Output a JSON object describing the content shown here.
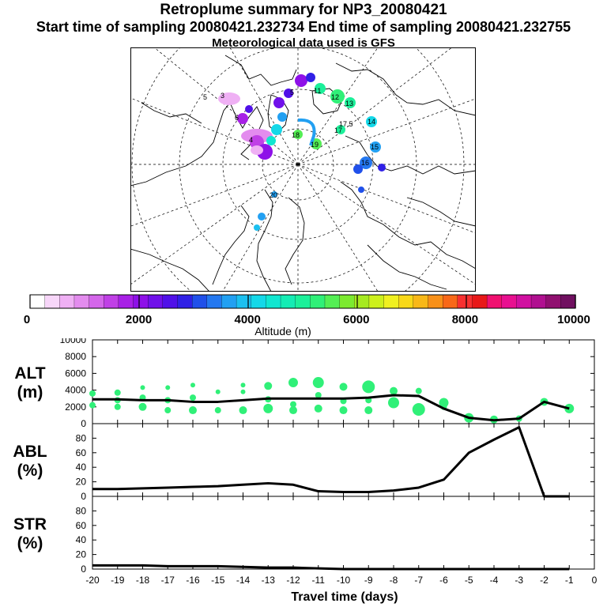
{
  "header": {
    "title": "Retroplume summary for NP3_20080421",
    "sampling": "Start time of sampling 20080421.232734     End time of sampling 20080421.232755",
    "met": "Meteorological data used is GFS"
  },
  "colorbar": {
    "label": "Altitude (m)",
    "ticks": [
      "0",
      "2000",
      "4000",
      "6000",
      "8000",
      "10000"
    ],
    "colors": [
      "#ffffff",
      "#f7d6f9",
      "#efb0f4",
      "#e38cee",
      "#d466ea",
      "#c040e6",
      "#a820e6",
      "#8e10e8",
      "#7010ea",
      "#5010e8",
      "#3020e6",
      "#2050ea",
      "#2478f0",
      "#22a0f2",
      "#1cc0f0",
      "#14d8e8",
      "#10e6d0",
      "#14ecb4",
      "#1cf09a",
      "#30f078",
      "#54ee54",
      "#7cea30",
      "#a6ea20",
      "#cdf01c",
      "#f0f020",
      "#f8d818",
      "#f8b818",
      "#f89018",
      "#f86818",
      "#f83030",
      "#e81818",
      "#f01070",
      "#e81090",
      "#d010a0",
      "#b01090",
      "#901070",
      "#701060"
    ]
  },
  "map": {
    "labels": [
      "5",
      "3",
      "6",
      "4",
      "5",
      "11",
      "12",
      "13",
      "14",
      "15",
      "16",
      "17",
      "18",
      "19",
      "20",
      "17.5"
    ]
  },
  "chart_data": [
    {
      "type": "line",
      "panel": "ALT",
      "ylabel": "ALT\n(m)",
      "ylabel_lines": [
        "ALT",
        "(m)"
      ],
      "ylim": [
        0,
        10000
      ],
      "yticks": [
        "0",
        "2000",
        "4000",
        "6000",
        "8000",
        "10000"
      ],
      "x": [
        -20,
        -19,
        -18,
        -17,
        -16,
        -15,
        -14,
        -13,
        -12,
        -11,
        -10,
        -9,
        -8,
        -7,
        -6,
        -5,
        -4,
        -3,
        -2,
        -1
      ],
      "series": [
        {
          "name": "median altitude",
          "values": [
            2900,
            2900,
            2800,
            2800,
            2600,
            2600,
            2800,
            3000,
            3000,
            3000,
            3000,
            3100,
            3400,
            3300,
            1800,
            700,
            400,
            600,
            2600,
            1800
          ]
        }
      ],
      "clusters": [
        {
          "x": -20,
          "y": 3600,
          "r": 4
        },
        {
          "x": -20,
          "y": 2200,
          "r": 4
        },
        {
          "x": -19,
          "y": 3700,
          "r": 4
        },
        {
          "x": -19,
          "y": 2800,
          "r": 4
        },
        {
          "x": -19,
          "y": 2000,
          "r": 4
        },
        {
          "x": -18,
          "y": 4300,
          "r": 3
        },
        {
          "x": -18,
          "y": 3100,
          "r": 4
        },
        {
          "x": -18,
          "y": 2000,
          "r": 5
        },
        {
          "x": -17,
          "y": 4300,
          "r": 3
        },
        {
          "x": -17,
          "y": 2800,
          "r": 4
        },
        {
          "x": -17,
          "y": 1600,
          "r": 4
        },
        {
          "x": -16,
          "y": 4600,
          "r": 3
        },
        {
          "x": -16,
          "y": 3100,
          "r": 4
        },
        {
          "x": -16,
          "y": 1600,
          "r": 5
        },
        {
          "x": -15,
          "y": 3800,
          "r": 3
        },
        {
          "x": -15,
          "y": 1600,
          "r": 4
        },
        {
          "x": -14,
          "y": 4600,
          "r": 3
        },
        {
          "x": -14,
          "y": 3800,
          "r": 3
        },
        {
          "x": -14,
          "y": 1600,
          "r": 5
        },
        {
          "x": -13,
          "y": 4500,
          "r": 5
        },
        {
          "x": -13,
          "y": 2900,
          "r": 4
        },
        {
          "x": -13,
          "y": 1800,
          "r": 6
        },
        {
          "x": -12,
          "y": 4900,
          "r": 6
        },
        {
          "x": -12,
          "y": 2300,
          "r": 4
        },
        {
          "x": -12,
          "y": 1600,
          "r": 5
        },
        {
          "x": -11,
          "y": 4900,
          "r": 7
        },
        {
          "x": -11,
          "y": 3400,
          "r": 4
        },
        {
          "x": -11,
          "y": 1800,
          "r": 5
        },
        {
          "x": -10,
          "y": 4400,
          "r": 5
        },
        {
          "x": -10,
          "y": 2700,
          "r": 4
        },
        {
          "x": -10,
          "y": 1600,
          "r": 5
        },
        {
          "x": -9,
          "y": 4400,
          "r": 8
        },
        {
          "x": -9,
          "y": 2800,
          "r": 4
        },
        {
          "x": -9,
          "y": 1600,
          "r": 5
        },
        {
          "x": -8,
          "y": 3900,
          "r": 5
        },
        {
          "x": -8,
          "y": 2500,
          "r": 7
        },
        {
          "x": -7,
          "y": 3900,
          "r": 4
        },
        {
          "x": -7,
          "y": 1700,
          "r": 8
        },
        {
          "x": -6,
          "y": 2500,
          "r": 6
        },
        {
          "x": -6,
          "y": 2000,
          "r": 4
        },
        {
          "x": -5,
          "y": 700,
          "r": 6
        },
        {
          "x": -4,
          "y": 500,
          "r": 5
        },
        {
          "x": -3,
          "y": 600,
          "r": 4
        },
        {
          "x": -2,
          "y": 2600,
          "r": 5
        },
        {
          "x": -1,
          "y": 1800,
          "r": 6
        }
      ]
    },
    {
      "type": "line",
      "panel": "ABL",
      "ylabel": "ABL\n(%)",
      "ylabel_lines": [
        "ABL",
        "(%)"
      ],
      "ylim": [
        0,
        100
      ],
      "yticks": [
        "0",
        "20",
        "40",
        "60",
        "80"
      ],
      "x": [
        -20,
        -19,
        -18,
        -17,
        -16,
        -15,
        -14,
        -13,
        -12,
        -11,
        -10,
        -9,
        -8,
        -7,
        -6,
        -5,
        -4,
        -3,
        -2,
        -1
      ],
      "series": [
        {
          "name": "ABL fraction",
          "values": [
            10,
            10,
            11,
            12,
            13,
            14,
            16,
            18,
            16,
            7,
            6,
            6,
            8,
            12,
            23,
            60,
            78,
            95,
            0,
            0
          ]
        }
      ]
    },
    {
      "type": "line",
      "panel": "STR",
      "ylabel": "STR\n(%)",
      "ylabel_lines": [
        "STR",
        "(%)"
      ],
      "ylim": [
        0,
        100
      ],
      "yticks": [
        "0",
        "20",
        "40",
        "60",
        "80"
      ],
      "xlabel": "Travel time (days)",
      "xticks": [
        "-20",
        "-19",
        "-18",
        "-17",
        "-16",
        "-15",
        "-14",
        "-13",
        "-12",
        "-11",
        "-10",
        "-9",
        "-8",
        "-7",
        "-6",
        "-5",
        "-4",
        "-3",
        "-2",
        "-1",
        "0"
      ],
      "x": [
        -20,
        -19,
        -18,
        -17,
        -16,
        -15,
        -14,
        -13,
        -12,
        -11,
        -10,
        -9,
        -8,
        -7,
        -6,
        -5,
        -4,
        -3,
        -2,
        -1
      ],
      "series": [
        {
          "name": "STR fraction",
          "values": [
            5,
            5,
            5,
            4,
            4,
            4,
            3,
            2,
            2,
            1,
            0,
            0,
            0,
            0,
            0,
            0,
            0,
            0,
            0,
            0
          ]
        }
      ]
    }
  ]
}
